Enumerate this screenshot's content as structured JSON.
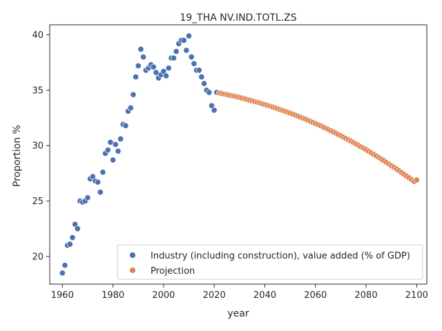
{
  "chart_data": {
    "type": "scatter",
    "title": "19_THA NV.IND.TOTL.ZS",
    "xlabel": "year",
    "ylabel": "Proportion %",
    "xlim": [
      1955,
      2104
    ],
    "ylim": [
      17.5,
      40.9
    ],
    "xticks": [
      1960,
      1980,
      2000,
      2020,
      2040,
      2060,
      2080,
      2100
    ],
    "yticks": [
      20,
      25,
      30,
      35,
      40
    ],
    "grid": false,
    "legend_position": "lower-right",
    "series": [
      {
        "name": "Industry (including construction), value added (% of GDP)",
        "color": "#4c72b0",
        "points": [
          [
            1960,
            18.5
          ],
          [
            1961,
            19.2
          ],
          [
            1962,
            21.0
          ],
          [
            1963,
            21.1
          ],
          [
            1964,
            21.7
          ],
          [
            1965,
            22.9
          ],
          [
            1966,
            22.5
          ],
          [
            1967,
            25.0
          ],
          [
            1968,
            24.9
          ],
          [
            1969,
            25.0
          ],
          [
            1970,
            25.3
          ],
          [
            1971,
            27.0
          ],
          [
            1972,
            27.2
          ],
          [
            1973,
            26.8
          ],
          [
            1974,
            26.7
          ],
          [
            1975,
            25.8
          ],
          [
            1976,
            27.6
          ],
          [
            1977,
            29.3
          ],
          [
            1978,
            29.6
          ],
          [
            1979,
            30.3
          ],
          [
            1980,
            28.7
          ],
          [
            1981,
            30.1
          ],
          [
            1982,
            29.5
          ],
          [
            1983,
            30.6
          ],
          [
            1984,
            31.9
          ],
          [
            1985,
            31.8
          ],
          [
            1986,
            33.1
          ],
          [
            1987,
            33.4
          ],
          [
            1988,
            34.6
          ],
          [
            1989,
            36.2
          ],
          [
            1990,
            37.2
          ],
          [
            1991,
            38.7
          ],
          [
            1992,
            38.0
          ],
          [
            1993,
            36.8
          ],
          [
            1994,
            37.0
          ],
          [
            1995,
            37.3
          ],
          [
            1996,
            37.1
          ],
          [
            1997,
            36.6
          ],
          [
            1998,
            36.1
          ],
          [
            1999,
            36.4
          ],
          [
            2000,
            36.7
          ],
          [
            2001,
            36.3
          ],
          [
            2002,
            37.0
          ],
          [
            2003,
            37.9
          ],
          [
            2004,
            37.9
          ],
          [
            2005,
            38.5
          ],
          [
            2006,
            39.2
          ],
          [
            2007,
            39.5
          ],
          [
            2008,
            39.5
          ],
          [
            2009,
            38.6
          ],
          [
            2010,
            39.9
          ],
          [
            2011,
            38.0
          ],
          [
            2012,
            37.4
          ],
          [
            2013,
            36.8
          ],
          [
            2014,
            36.8
          ],
          [
            2015,
            36.2
          ],
          [
            2016,
            35.6
          ],
          [
            2017,
            35.0
          ],
          [
            2018,
            34.8
          ],
          [
            2019,
            33.6
          ],
          [
            2020,
            33.2
          ],
          [
            2021,
            34.8
          ]
        ]
      },
      {
        "name": "Projection",
        "color": "#dd8452",
        "x_start": 2022,
        "x_end": 2100,
        "values": [
          34.75,
          34.7,
          34.65,
          34.6,
          34.55,
          34.5,
          34.45,
          34.4,
          34.34,
          34.28,
          34.22,
          34.16,
          34.1,
          34.04,
          33.98,
          33.91,
          33.84,
          33.77,
          33.7,
          33.63,
          33.56,
          33.49,
          33.41,
          33.33,
          33.25,
          33.17,
          33.09,
          33.01,
          32.93,
          32.84,
          32.75,
          32.66,
          32.57,
          32.48,
          32.39,
          32.29,
          32.19,
          32.09,
          31.99,
          31.89,
          31.79,
          31.68,
          31.57,
          31.46,
          31.35,
          31.24,
          31.13,
          31.01,
          30.89,
          30.77,
          30.65,
          30.53,
          30.41,
          30.28,
          30.15,
          30.02,
          29.89,
          29.76,
          29.63,
          29.49,
          29.35,
          29.21,
          29.07,
          28.93,
          28.79,
          28.64,
          28.49,
          28.34,
          28.19,
          28.04,
          27.89,
          27.73,
          27.57,
          27.41,
          27.25,
          27.09,
          26.93,
          26.77,
          26.9
        ]
      }
    ]
  }
}
